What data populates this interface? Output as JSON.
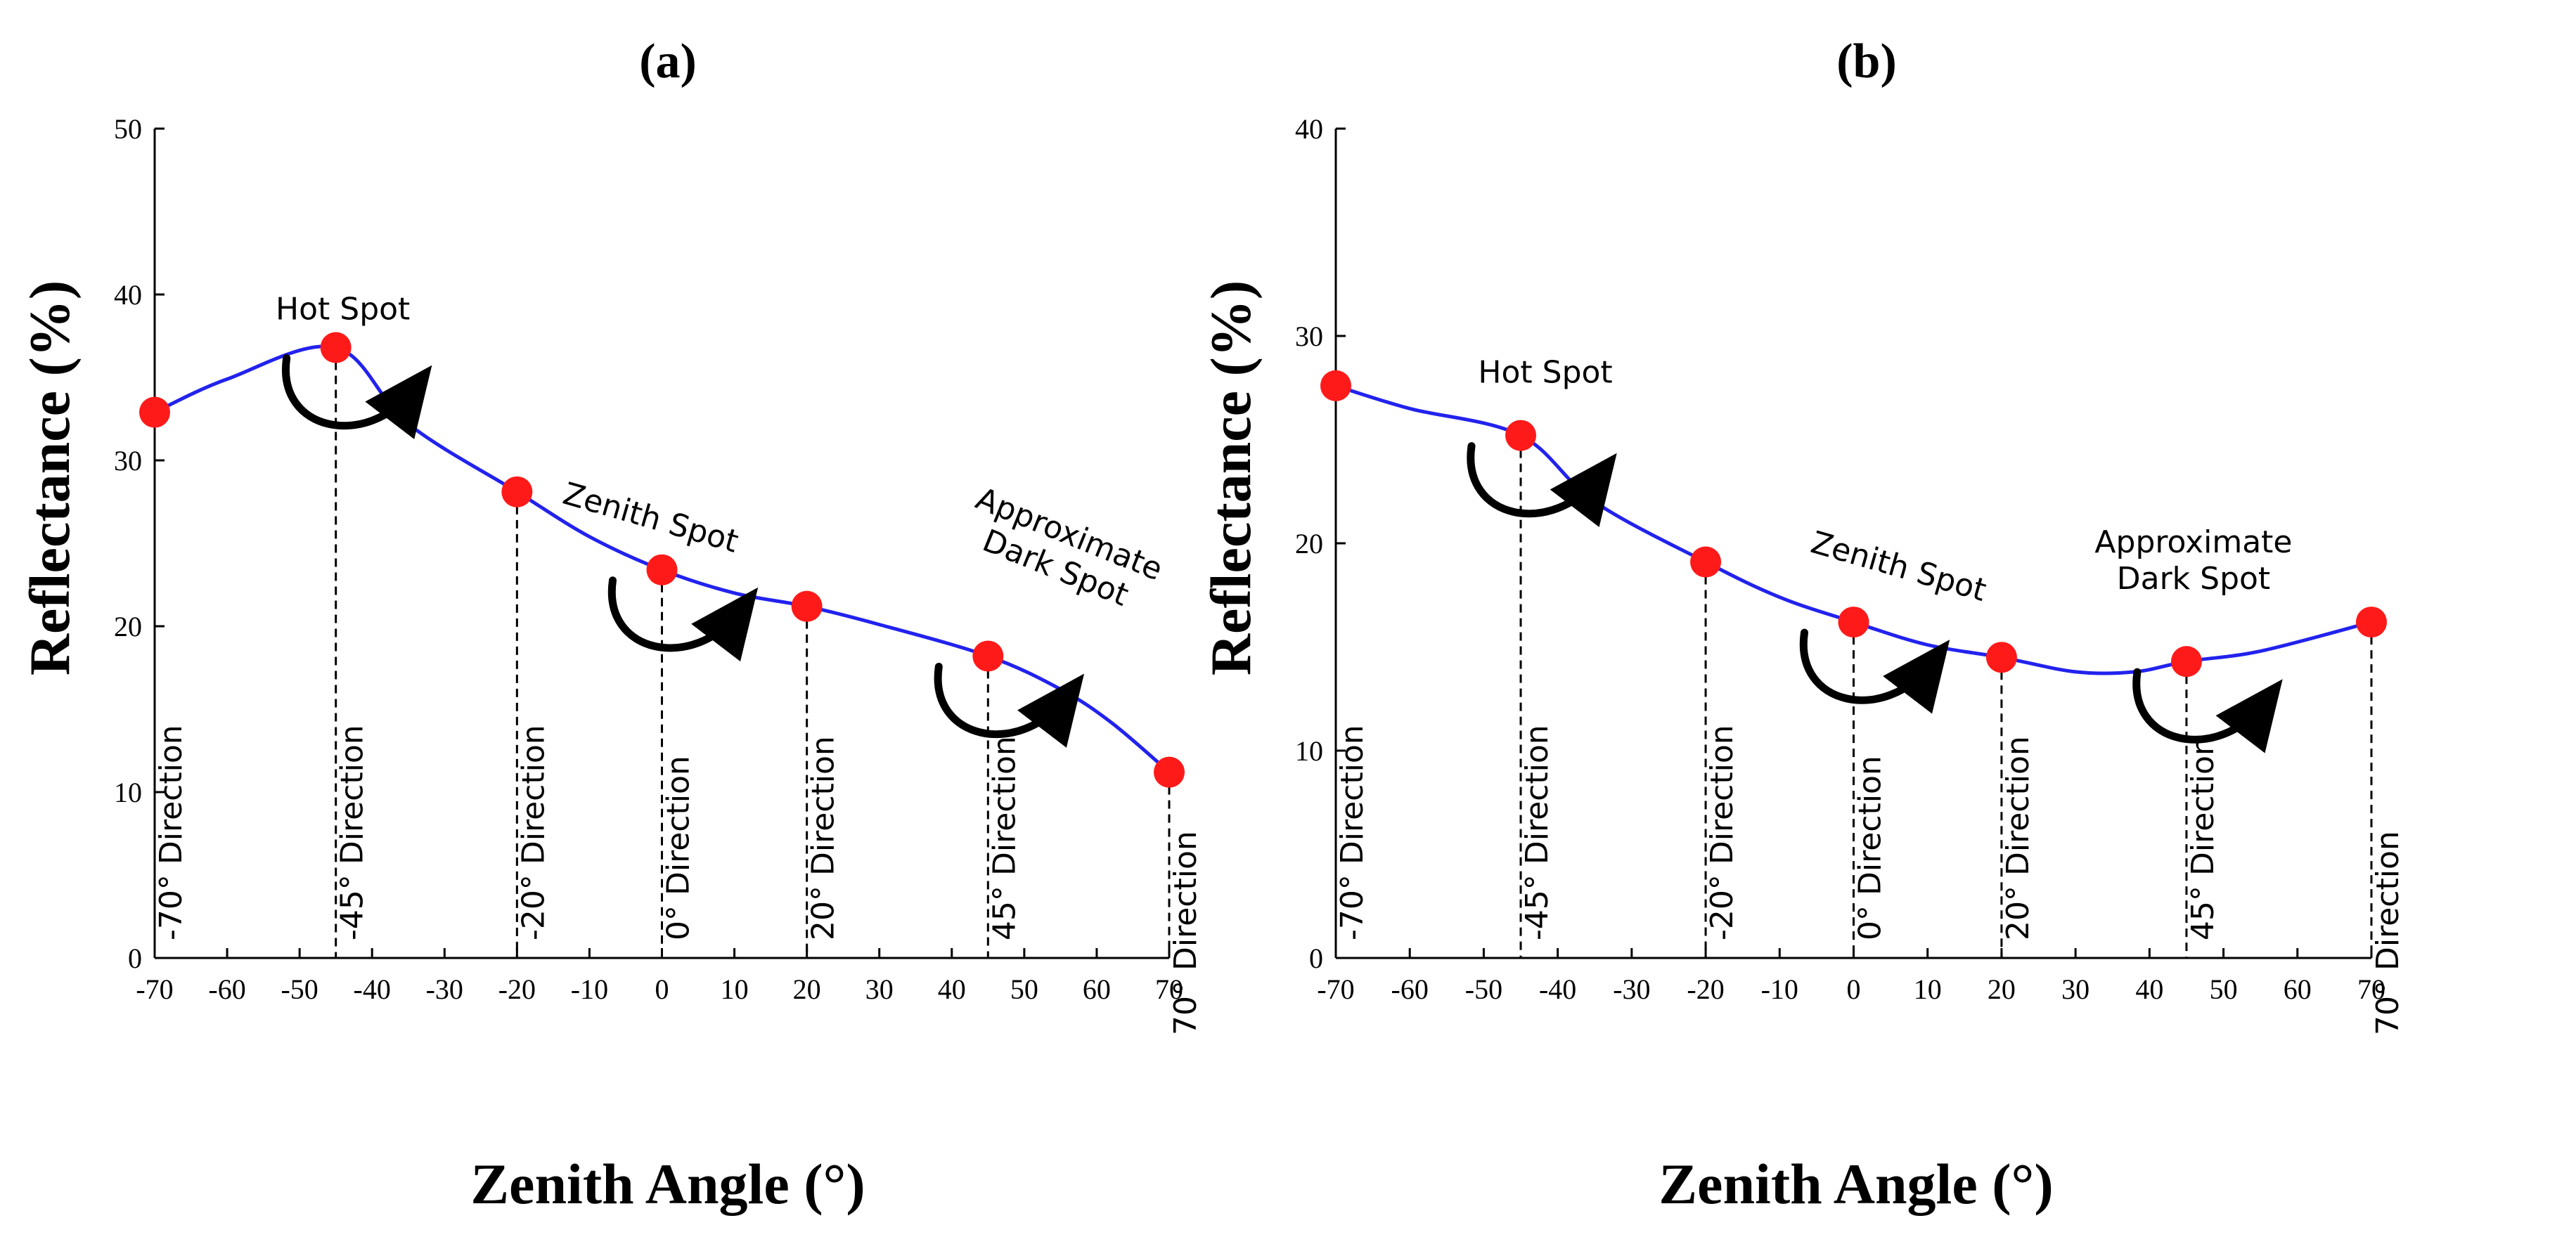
{
  "chart_data": [
    {
      "type": "line",
      "panel": "(a)",
      "xlabel": "Zenith Angle (°)",
      "ylabel": "Reflectance (%)",
      "xlim": [
        -70,
        70
      ],
      "ylim": [
        0,
        50
      ],
      "xticks": [
        -70,
        -60,
        -50,
        -40,
        -30,
        -20,
        -10,
        0,
        10,
        20,
        30,
        40,
        50,
        60,
        70
      ],
      "yticks": [
        0,
        10,
        20,
        30,
        40,
        50
      ],
      "curve": [
        [
          -70,
          32.9
        ],
        [
          -60,
          34.9
        ],
        [
          -45,
          36.8
        ],
        [
          -35,
          32.2
        ],
        [
          -20,
          28.1
        ],
        [
          -10,
          25.4
        ],
        [
          0,
          23.4
        ],
        [
          10,
          22.0
        ],
        [
          20,
          21.2
        ],
        [
          30,
          20.1
        ],
        [
          45,
          18.2
        ],
        [
          55,
          16.2
        ],
        [
          62,
          14.2
        ],
        [
          70,
          11.2
        ]
      ],
      "points": [
        {
          "x": -70,
          "y": 32.9,
          "label": "-70° Direction"
        },
        {
          "x": -45,
          "y": 36.8,
          "label": "-45° Direction"
        },
        {
          "x": -20,
          "y": 28.1,
          "label": "-20° Direction"
        },
        {
          "x": 0,
          "y": 23.4,
          "label": "0° Direction"
        },
        {
          "x": 20,
          "y": 21.2,
          "label": "20° Direction"
        },
        {
          "x": 45,
          "y": 18.2,
          "label": "45° Direction"
        },
        {
          "x": 70,
          "y": 11.2,
          "label": "70° Direction"
        }
      ],
      "annotations": [
        {
          "text": [
            "Hot Spot"
          ],
          "x": -45,
          "y": 36.8
        },
        {
          "text": [
            "Zenith Spot"
          ],
          "x": 0,
          "y": 23.4
        },
        {
          "text": [
            "Approximate",
            "Dark Spot"
          ],
          "x": 45,
          "y": 18.2
        }
      ]
    },
    {
      "type": "line",
      "panel": "(b)",
      "xlabel": "Zenith Angle (°)",
      "ylabel": "Reflectance (%)",
      "xlim": [
        -70,
        70
      ],
      "ylim": [
        0,
        40
      ],
      "xticks": [
        -70,
        -60,
        -50,
        -40,
        -30,
        -20,
        -10,
        0,
        10,
        20,
        30,
        40,
        50,
        60,
        70
      ],
      "yticks": [
        0,
        10,
        20,
        30,
        40
      ],
      "curve": [
        [
          -70,
          27.6
        ],
        [
          -60,
          26.5
        ],
        [
          -45,
          25.2
        ],
        [
          -35,
          22.0
        ],
        [
          -20,
          19.1
        ],
        [
          -10,
          17.4
        ],
        [
          0,
          16.2
        ],
        [
          10,
          15.1
        ],
        [
          20,
          14.5
        ],
        [
          30,
          13.8
        ],
        [
          38,
          13.8
        ],
        [
          45,
          14.3
        ],
        [
          55,
          14.8
        ],
        [
          70,
          16.2
        ]
      ],
      "points": [
        {
          "x": -70,
          "y": 27.6,
          "label": "-70° Direction"
        },
        {
          "x": -45,
          "y": 25.2,
          "label": "-45° Direction"
        },
        {
          "x": -20,
          "y": 19.1,
          "label": "-20° Direction"
        },
        {
          "x": 0,
          "y": 16.2,
          "label": "0° Direction"
        },
        {
          "x": 20,
          "y": 14.5,
          "label": "20° Direction"
        },
        {
          "x": 45,
          "y": 14.3,
          "label": "45° Direction"
        },
        {
          "x": 70,
          "y": 16.2,
          "label": "70° Direction"
        }
      ],
      "annotations": [
        {
          "text": [
            "Hot Spot"
          ],
          "x": -45,
          "y": 25.2
        },
        {
          "text": [
            "Zenith Spot"
          ],
          "x": 0,
          "y": 16.2
        },
        {
          "text": [
            "Approximate",
            "Dark Spot"
          ],
          "x": 45,
          "y": 14.3
        }
      ]
    }
  ]
}
